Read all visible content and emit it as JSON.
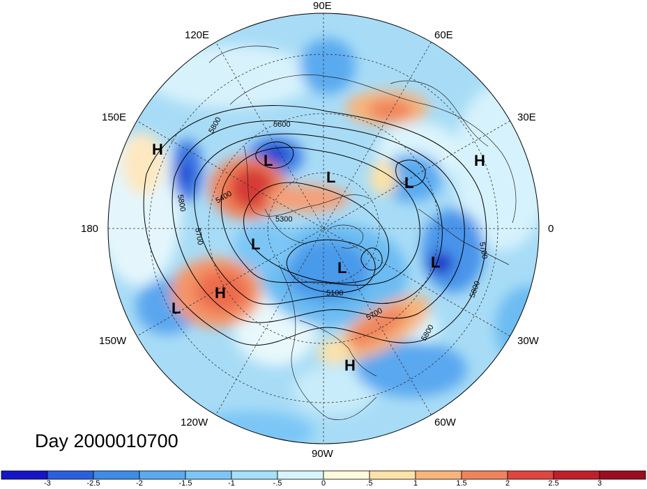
{
  "title": "Day 2000010700",
  "longitude_labels": [
    {
      "text": "90E"
    },
    {
      "text": "60E"
    },
    {
      "text": "30E"
    },
    {
      "text": "0"
    },
    {
      "text": "30W"
    },
    {
      "text": "60W"
    },
    {
      "text": "90W"
    },
    {
      "text": "120W"
    },
    {
      "text": "150W"
    },
    {
      "text": "180"
    },
    {
      "text": "150E"
    },
    {
      "text": "120E"
    }
  ],
  "contour_labels": [
    "5600",
    "5800",
    "5800",
    "5400",
    "5300",
    "5700",
    "5100",
    "5700",
    "5800",
    "5700",
    "5800"
  ],
  "pressure_centers": [
    "H",
    "L",
    "L",
    "L",
    "H",
    "L",
    "L",
    "L",
    "H",
    "L",
    "H"
  ],
  "colorbar": {
    "labels": [
      "-3",
      "-2.5",
      "-2",
      "-1.5",
      "-1",
      "-.5",
      "0",
      ".5",
      "1",
      "1.5",
      "2",
      "2.5",
      "3"
    ],
    "colors": [
      "#1515c8",
      "#2a5fe0",
      "#3c8ce8",
      "#5aaaf0",
      "#7cc6f6",
      "#a4e0fa",
      "#d6f4fc",
      "#fffadc",
      "#fde2a8",
      "#f8b47a",
      "#f0825a",
      "#e0463e",
      "#c01e2a",
      "#9a0e20"
    ]
  }
}
